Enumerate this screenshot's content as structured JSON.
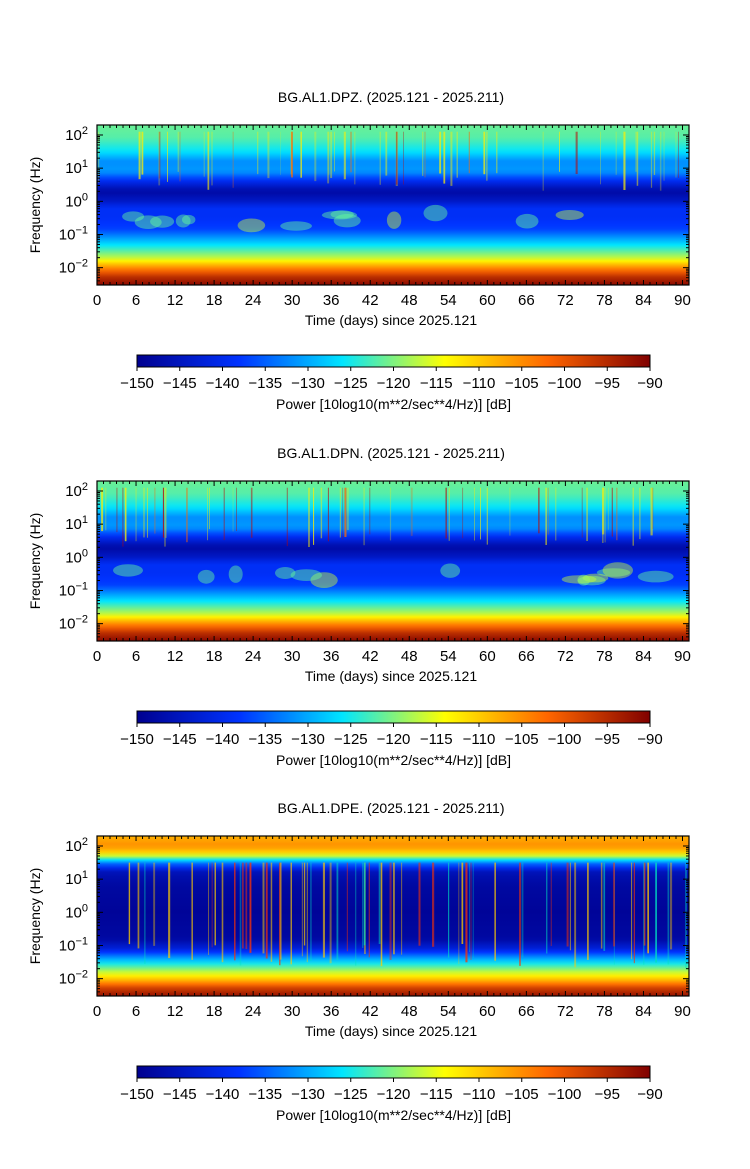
{
  "colorbar_label": "Power [10log10(m**2/sec**4/Hz)] [dB]",
  "chart_data": [
    {
      "type": "heatmap",
      "title": "BG.AL1.DPZ. (2025.121 - 2025.211)",
      "xlabel": "Time (days) since 2025.121",
      "ylabel": "Frequency (Hz)",
      "xlim": [
        0,
        91
      ],
      "ylim": [
        0.003,
        200
      ],
      "y_scale": "log",
      "x_ticks": [
        0,
        6,
        12,
        18,
        24,
        30,
        36,
        42,
        48,
        54,
        60,
        66,
        72,
        78,
        84,
        90
      ],
      "y_ticks": [
        "10^-2",
        "10^-1",
        "10^0",
        "10^1",
        "10^2"
      ],
      "color_range": [
        -150,
        -90
      ],
      "colorbar_ticks": [
        -150,
        -145,
        -140,
        -135,
        -130,
        -125,
        -120,
        -115,
        -110,
        -105,
        -100,
        -95,
        -90
      ],
      "colorbar_label": "Power [10log10(m**2/sec**4/Hz)] [dB]",
      "colormap": [
        "#00008f",
        "#0033ff",
        "#00e5ff",
        "#ffff00",
        "#ff6600",
        "#800000"
      ]
    },
    {
      "type": "heatmap",
      "title": "BG.AL1.DPN. (2025.121 - 2025.211)",
      "xlabel": "Time (days) since 2025.121",
      "ylabel": "Frequency (Hz)",
      "xlim": [
        0,
        91
      ],
      "ylim": [
        0.003,
        200
      ],
      "y_scale": "log",
      "x_ticks": [
        0,
        6,
        12,
        18,
        24,
        30,
        36,
        42,
        48,
        54,
        60,
        66,
        72,
        78,
        84,
        90
      ],
      "y_ticks": [
        "10^-2",
        "10^-1",
        "10^0",
        "10^1",
        "10^2"
      ],
      "color_range": [
        -150,
        -90
      ],
      "colorbar_ticks": [
        -150,
        -145,
        -140,
        -135,
        -130,
        -125,
        -120,
        -115,
        -110,
        -105,
        -100,
        -95,
        -90
      ],
      "colorbar_label": "Power [10log10(m**2/sec**4/Hz)] [dB]",
      "colormap": [
        "#00008f",
        "#0033ff",
        "#00e5ff",
        "#ffff00",
        "#ff6600",
        "#800000"
      ]
    },
    {
      "type": "heatmap",
      "title": "BG.AL1.DPE. (2025.121 - 2025.211)",
      "xlabel": "Time (days) since 2025.121",
      "ylabel": "Frequency (Hz)",
      "xlim": [
        0,
        91
      ],
      "ylim": [
        0.003,
        200
      ],
      "y_scale": "log",
      "x_ticks": [
        0,
        6,
        12,
        18,
        24,
        30,
        36,
        42,
        48,
        54,
        60,
        66,
        72,
        78,
        84,
        90
      ],
      "y_ticks": [
        "10^-2",
        "10^-1",
        "10^0",
        "10^1",
        "10^2"
      ],
      "color_range": [
        -150,
        -90
      ],
      "colorbar_ticks": [
        -150,
        -145,
        -140,
        -135,
        -130,
        -125,
        -120,
        -115,
        -110,
        -105,
        -100,
        -95,
        -90
      ],
      "colorbar_label": "Power [10log10(m**2/sec**4/Hz)] [dB]",
      "colormap": [
        "#00008f",
        "#0033ff",
        "#00e5ff",
        "#ffff00",
        "#ff6600",
        "#800000"
      ]
    }
  ]
}
